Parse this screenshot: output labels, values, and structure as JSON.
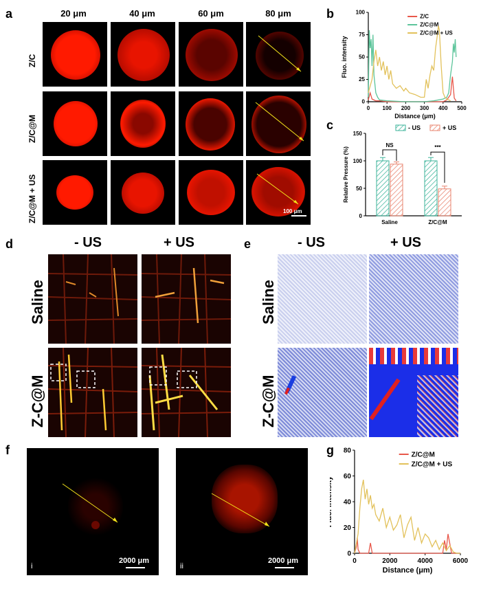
{
  "panel_labels": [
    "a",
    "b",
    "c",
    "d",
    "e",
    "f",
    "g"
  ],
  "panel_a": {
    "columns": [
      "20 μm",
      "40 μm",
      "60 μm",
      "80 μm"
    ],
    "rows": [
      "Z/C",
      "Z/C@M",
      "Z/C@M + US"
    ],
    "scale_bar": "100 μm"
  },
  "panel_d": {
    "columns": [
      "- US",
      "+ US"
    ],
    "rows": [
      "Saline",
      "Z-C@M"
    ]
  },
  "panel_e": {
    "columns": [
      "- US",
      "+ US"
    ],
    "rows": [
      "Saline",
      "Z-C@M"
    ]
  },
  "panel_f": {
    "sub_labels": [
      "i",
      "ii"
    ],
    "scale_bar": "2000 μm"
  },
  "colors": {
    "zc": "#e8574a",
    "zcm": "#5cc49a",
    "zcmus": "#e2c15a",
    "arrow": "#f2e21a",
    "accent_red": "#ff1a00"
  },
  "chart_data": [
    {
      "type": "line",
      "panel": "b",
      "xlabel": "Distance (μm)",
      "ylabel": "Fluo. intensity",
      "xlim": [
        0,
        500
      ],
      "ylim": [
        0,
        100
      ],
      "xticks": [
        0,
        100,
        200,
        300,
        400,
        500
      ],
      "yticks": [
        0,
        25,
        50,
        75,
        100
      ],
      "legend_position": "top-right",
      "series": [
        {
          "name": "Z/C",
          "color": "#e8574a",
          "x": [
            0,
            10,
            20,
            30,
            40,
            60,
            100,
            200,
            300,
            400,
            420,
            440,
            450,
            460,
            470
          ],
          "y": [
            2,
            10,
            3,
            2,
            1,
            1,
            0,
            0,
            0,
            0,
            2,
            8,
            28,
            4,
            1
          ]
        },
        {
          "name": "Z/C@M",
          "color": "#5cc49a",
          "x": [
            0,
            5,
            10,
            15,
            20,
            25,
            30,
            40,
            50,
            60,
            100,
            200,
            300,
            350,
            400,
            420,
            430,
            440,
            450,
            455,
            460,
            465,
            470
          ],
          "y": [
            5,
            80,
            60,
            70,
            40,
            75,
            30,
            10,
            5,
            2,
            1,
            0,
            0,
            1,
            3,
            5,
            10,
            30,
            45,
            65,
            55,
            70,
            50
          ]
        },
        {
          "name": "Z/C@M + US",
          "color": "#e2c15a",
          "x": [
            0,
            20,
            30,
            40,
            50,
            60,
            70,
            80,
            90,
            100,
            110,
            120,
            130,
            150,
            170,
            190,
            200,
            220,
            250,
            280,
            300,
            310,
            320,
            330,
            340,
            350,
            360,
            370,
            375,
            380,
            390,
            400,
            410,
            420,
            430,
            440
          ],
          "y": [
            10,
            25,
            45,
            58,
            40,
            50,
            35,
            45,
            30,
            40,
            25,
            35,
            20,
            15,
            18,
            12,
            15,
            10,
            8,
            5,
            5,
            25,
            15,
            30,
            40,
            35,
            60,
            75,
            85,
            80,
            40,
            10,
            5,
            3,
            2,
            1
          ]
        }
      ]
    },
    {
      "type": "bar",
      "panel": "c",
      "ylabel": "Relative Pressure (%)",
      "categories": [
        "Saline",
        "Z/C@M"
      ],
      "ylim": [
        0,
        150
      ],
      "yticks": [
        0,
        50,
        100,
        150
      ],
      "legend_position": "top-right",
      "series": [
        {
          "name": "- US",
          "color": "#3bb39a",
          "values": [
            100,
            100
          ],
          "errors": [
            6,
            6
          ]
        },
        {
          "name": "+ US",
          "color": "#e8836e",
          "values": [
            94,
            49
          ],
          "errors": [
            4,
            5
          ]
        }
      ],
      "annotations": [
        "NS",
        "***"
      ]
    },
    {
      "type": "line",
      "panel": "g",
      "xlabel": "Distance (μm)",
      "ylabel": "Fluo. intensity",
      "xlim": [
        0,
        6000
      ],
      "ylim": [
        0,
        80
      ],
      "xticks": [
        0,
        2000,
        4000,
        6000
      ],
      "yticks": [
        0,
        20,
        40,
        60,
        80
      ],
      "legend_position": "top-right",
      "series": [
        {
          "name": "Z/C@M",
          "color": "#e8574a",
          "x": [
            0,
            100,
            150,
            200,
            300,
            500,
            800,
            900,
            1000,
            1500,
            2000,
            3000,
            4000,
            5000,
            5100,
            5200,
            5300,
            5500,
            6000
          ],
          "y": [
            0,
            5,
            12,
            3,
            0,
            0,
            0,
            8,
            0,
            0,
            0,
            0,
            0,
            0,
            10,
            3,
            15,
            0,
            0
          ]
        },
        {
          "name": "Z/C@M + US",
          "color": "#e2c15a",
          "x": [
            0,
            200,
            300,
            400,
            500,
            600,
            700,
            800,
            900,
            1000,
            1100,
            1200,
            1400,
            1600,
            1800,
            2000,
            2200,
            2400,
            2600,
            2800,
            3000,
            3200,
            3400,
            3600,
            3800,
            4000,
            4200,
            4400,
            4600,
            4800,
            5000,
            5200,
            5400,
            5600,
            5800,
            6000
          ],
          "y": [
            0,
            15,
            35,
            50,
            57,
            42,
            50,
            38,
            45,
            35,
            38,
            30,
            25,
            35,
            20,
            28,
            18,
            22,
            30,
            12,
            22,
            28,
            10,
            20,
            8,
            15,
            12,
            5,
            10,
            3,
            8,
            2,
            6,
            1,
            0,
            0
          ]
        }
      ]
    }
  ]
}
